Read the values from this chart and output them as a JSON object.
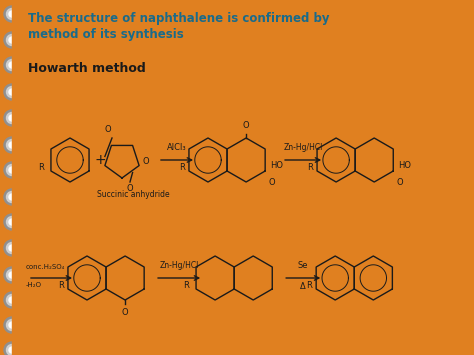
{
  "bg_color": "#E08020",
  "title_color": "#1a6b8a",
  "title_line1": "The structure of naphthalene is confirmed by",
  "title_line2": "method of its synthesis",
  "subtitle_text": "Howarth method",
  "struct_color": "#1a1a1a",
  "arrow_color": "#1a1a1a",
  "bullet_outer": "#909090",
  "bullet_inner": "#d0d0d0",
  "figw": 4.74,
  "figh": 3.55,
  "dpi": 100
}
